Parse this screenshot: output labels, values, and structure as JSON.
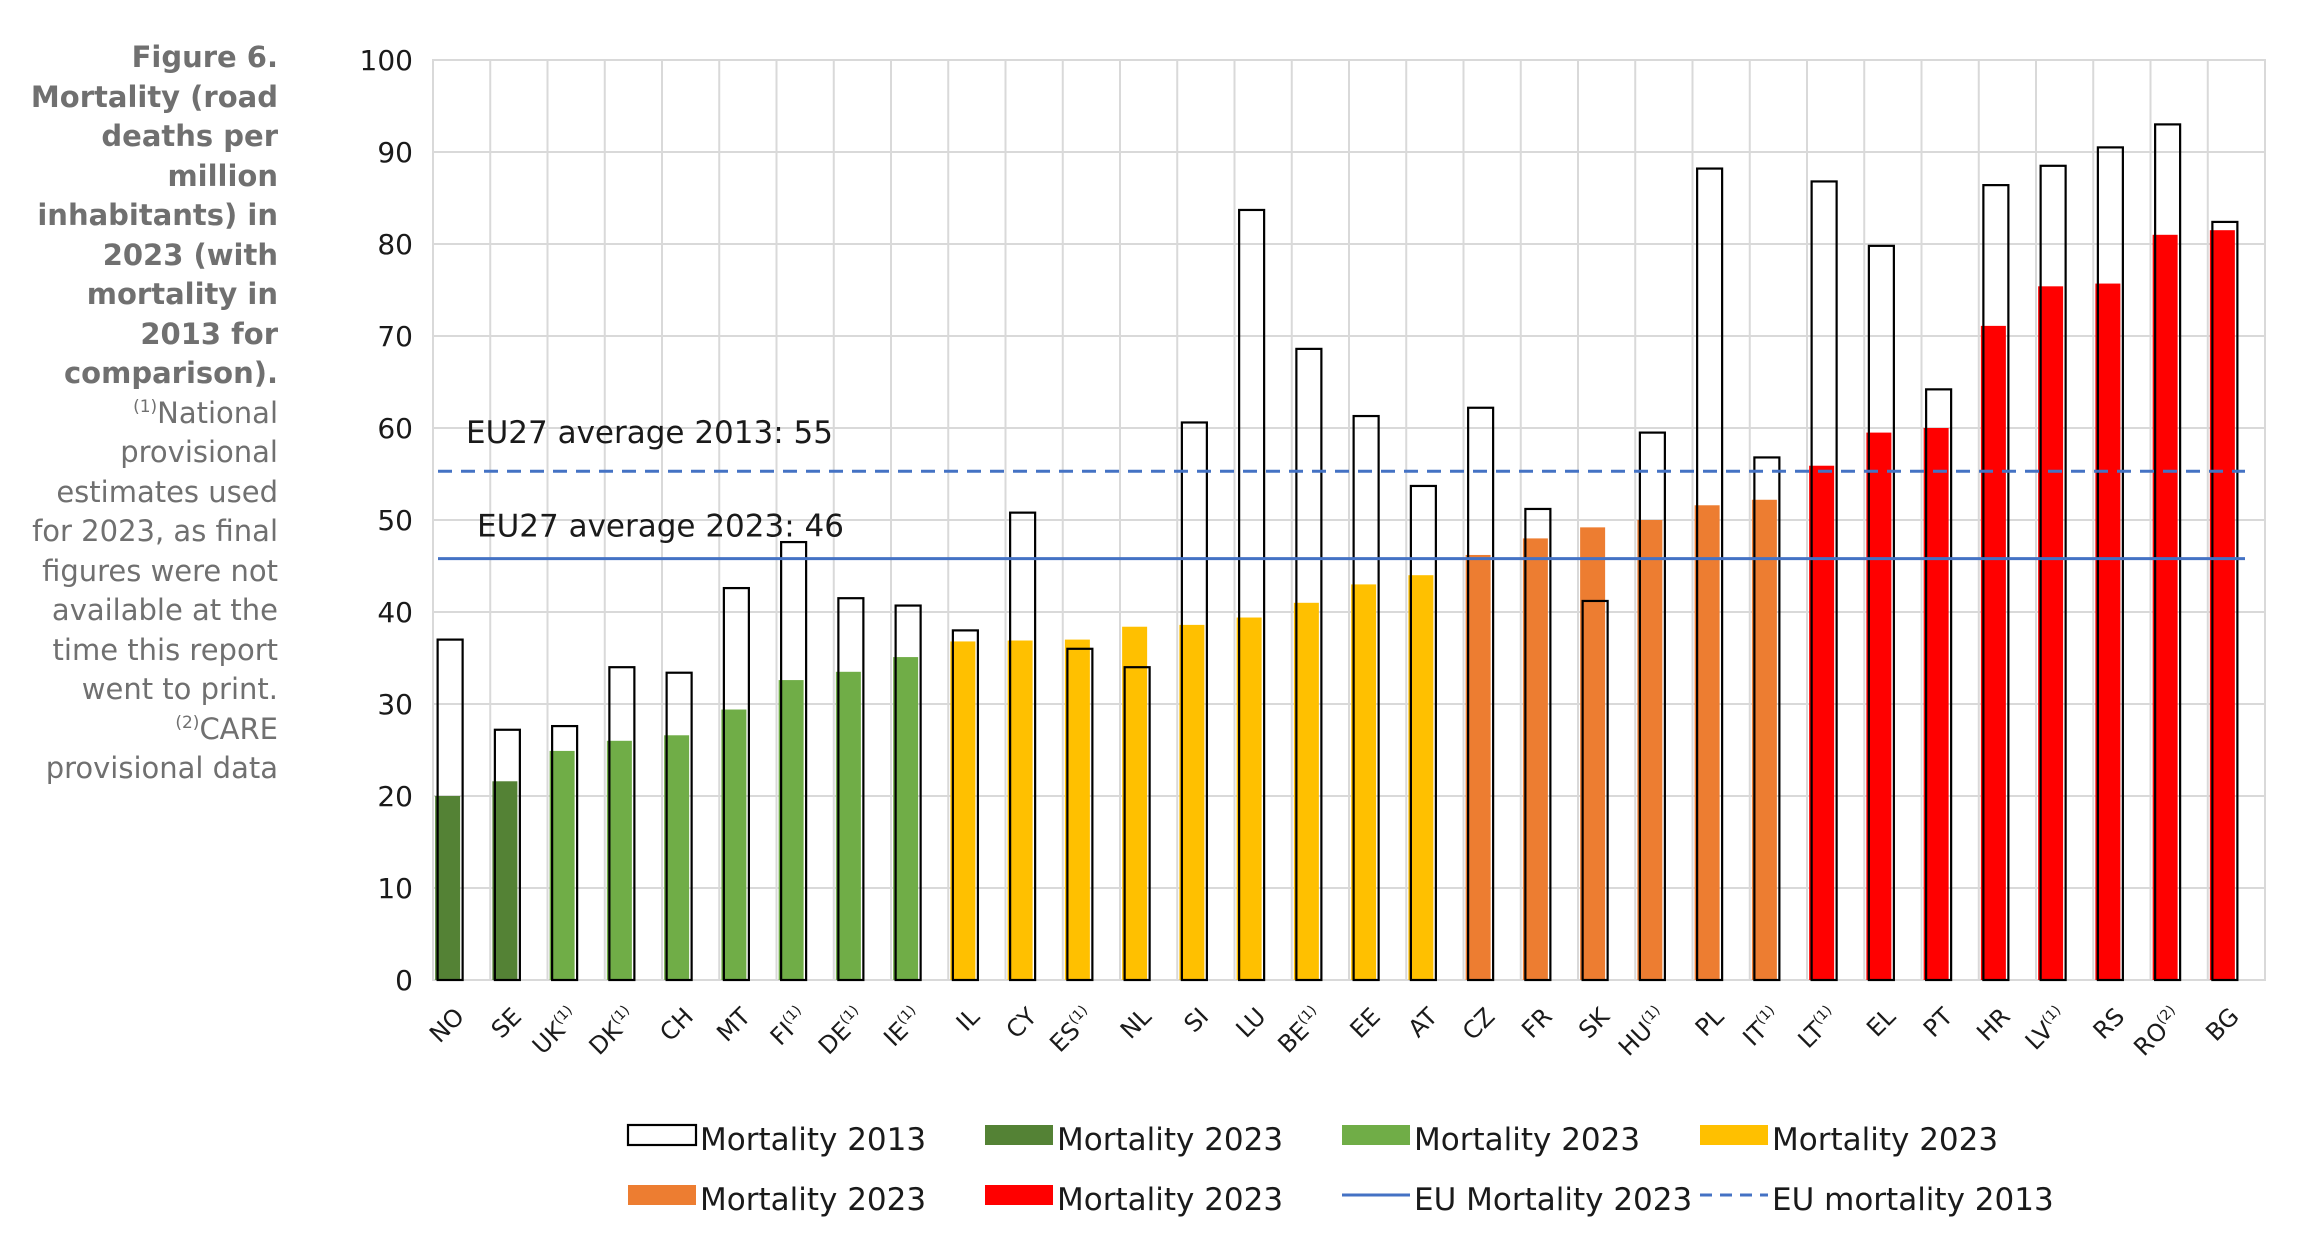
{
  "caption": {
    "title": "Figure 6. Mortality (road deaths per million inhabitants) in 2023 (with mortality in 2013 for comparison).",
    "note1_marker": "(1)",
    "note1": "National provisional estimates used for 2023, as final figures were not available at the time this report went to print.",
    "note2_marker": "(2)",
    "note2": "CARE provisional data"
  },
  "chart_data": {
    "type": "bar",
    "title": "",
    "xlabel": "",
    "ylabel": "",
    "ylim": [
      0,
      100
    ],
    "yticks": [
      0,
      10,
      20,
      30,
      40,
      50,
      60,
      70,
      80,
      90,
      100
    ],
    "grid": true,
    "legend_position": "bottom",
    "categories": [
      "NO",
      "SE",
      "UK",
      "DK",
      "CH",
      "MT",
      "FI",
      "DE",
      "IE",
      "IL",
      "CY",
      "ES",
      "NL",
      "SI",
      "LU",
      "BE",
      "EE",
      "AT",
      "CZ",
      "FR",
      "SK",
      "HU",
      "PL",
      "IT",
      "LT",
      "EL",
      "PT",
      "HR",
      "LV",
      "RS",
      "RO",
      "BG"
    ],
    "category_superscripts": [
      "",
      "",
      "(1)",
      "(1)",
      "",
      "",
      "(1)",
      "(1)",
      "(1)",
      "",
      "",
      "(1)",
      "",
      "",
      "",
      "(1)",
      "",
      "",
      "",
      "",
      "",
      "(1)",
      "",
      "(1)",
      "(1)",
      "",
      "",
      "",
      "(1)",
      "",
      "(2)",
      ""
    ],
    "series": [
      {
        "name": "Mortality 2013",
        "style": "outline",
        "values": [
          37,
          27.2,
          27.6,
          34,
          33.4,
          42.6,
          47.6,
          41.5,
          40.7,
          38,
          50.8,
          36,
          34,
          60.6,
          83.7,
          68.6,
          61.3,
          53.7,
          62.2,
          51.2,
          41.2,
          59.5,
          88.2,
          56.8,
          86.8,
          79.8,
          64.2,
          86.4,
          88.5,
          90.5,
          93,
          82.4
        ]
      },
      {
        "name": "Mortality 2023",
        "values": [
          20,
          21.6,
          24.9,
          26,
          26.6,
          29.4,
          32.6,
          33.5,
          35.1,
          36.8,
          36.9,
          37,
          38.4,
          38.6,
          39.4,
          41,
          43,
          44,
          46.2,
          48,
          49.2,
          50,
          51.6,
          52.2,
          55.9,
          59.5,
          60,
          71.1,
          75.4,
          75.7,
          81,
          81.5
        ],
        "colors": [
          "#548235",
          "#548235",
          "#70ad47",
          "#70ad47",
          "#70ad47",
          "#70ad47",
          "#70ad47",
          "#70ad47",
          "#70ad47",
          "#ffc000",
          "#ffc000",
          "#ffc000",
          "#ffc000",
          "#ffc000",
          "#ffc000",
          "#ffc000",
          "#ffc000",
          "#ffc000",
          "#ed7d31",
          "#ed7d31",
          "#ed7d31",
          "#ed7d31",
          "#ed7d31",
          "#ed7d31",
          "#ff0000",
          "#ff0000",
          "#ff0000",
          "#ff0000",
          "#ff0000",
          "#ff0000",
          "#ff0000",
          "#ff0000"
        ]
      }
    ],
    "reference_lines": [
      {
        "name": "EU Mortality 2023",
        "value": 45.8,
        "style": "solid",
        "color": "#4472c4",
        "label": "EU27 average 2023: 46"
      },
      {
        "name": "EU mortality 2013",
        "value": 55.3,
        "style": "dashed",
        "color": "#4472c4",
        "label": "EU27 average 2013: 55"
      }
    ],
    "legend": [
      {
        "label": "Mortality 2013",
        "kind": "outline",
        "color": "#000000"
      },
      {
        "label": "Mortality 2023",
        "kind": "fill",
        "color": "#548235"
      },
      {
        "label": "Mortality 2023",
        "kind": "fill",
        "color": "#70ad47"
      },
      {
        "label": "Mortality 2023",
        "kind": "fill",
        "color": "#ffc000"
      },
      {
        "label": "Mortality 2023",
        "kind": "fill",
        "color": "#ed7d31"
      },
      {
        "label": "Mortality 2023",
        "kind": "fill",
        "color": "#ff0000"
      },
      {
        "label": "EU Mortality 2023",
        "kind": "solid-line",
        "color": "#4472c4"
      },
      {
        "label": "EU mortality 2013",
        "kind": "dashed-line",
        "color": "#4472c4"
      }
    ]
  }
}
